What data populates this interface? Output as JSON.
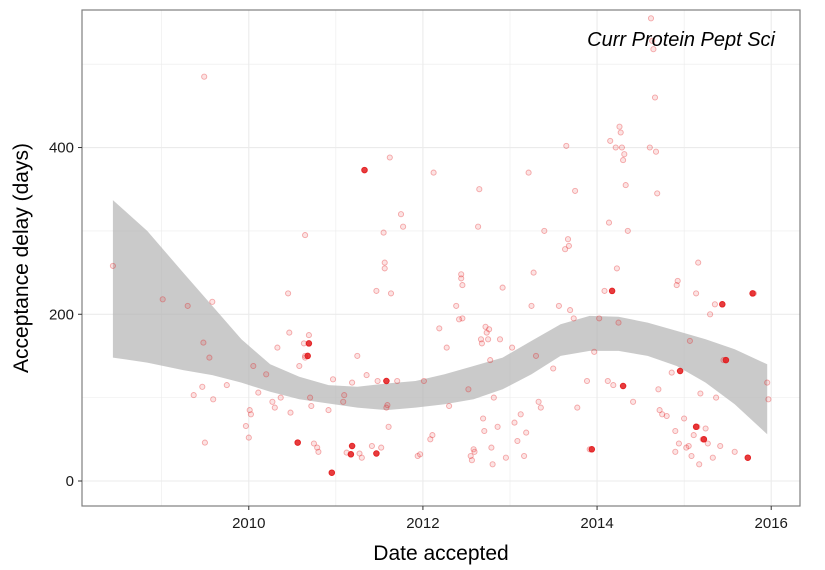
{
  "chart_data": {
    "type": "scatter",
    "title": "Curr Protein Pept Sci",
    "xlabel": "Date accepted",
    "ylabel": "Acceptance delay (days)",
    "xlim": [
      "2008-02-01",
      "2016-05-01"
    ],
    "ylim": [
      -30,
      565
    ],
    "x_ticks": [
      "2010",
      "2012",
      "2014",
      "2016"
    ],
    "y_ticks": [
      "0",
      "200",
      "400"
    ],
    "grid": true,
    "legend": "none",
    "colors": {
      "points": "#e31a1c",
      "band": "#b3b3b3",
      "grid": "#ebebeb",
      "border": "#7f7f7f"
    },
    "points": [
      [
        "2008-06-10",
        258
      ],
      [
        "2009-01-05",
        218
      ],
      [
        "2009-04-20",
        210
      ],
      [
        "2009-05-15",
        103
      ],
      [
        "2009-06-20",
        113
      ],
      [
        "2009-06-25",
        166
      ],
      [
        "2009-06-28",
        485
      ],
      [
        "2009-07-01",
        46
      ],
      [
        "2009-07-20",
        148
      ],
      [
        "2009-08-01",
        215
      ],
      [
        "2009-08-05",
        98
      ],
      [
        "2009-10-01",
        115
      ],
      [
        "2009-12-20",
        66
      ],
      [
        "2010-01-01",
        52
      ],
      [
        "2010-01-05",
        85
      ],
      [
        "2010-01-10",
        80
      ],
      [
        "2010-01-20",
        138
      ],
      [
        "2010-02-10",
        106
      ],
      [
        "2010-03-15",
        128
      ],
      [
        "2010-04-10",
        95
      ],
      [
        "2010-04-20",
        88
      ],
      [
        "2010-05-01",
        160
      ],
      [
        "2010-05-15",
        100
      ],
      [
        "2010-06-15",
        225
      ],
      [
        "2010-06-20",
        178
      ],
      [
        "2010-06-25",
        82
      ],
      [
        "2010-08-01",
        138
      ],
      [
        "2010-08-20",
        165
      ],
      [
        "2010-08-25",
        295
      ],
      [
        "2010-08-25",
        150
      ],
      [
        "2010-08-25",
        148
      ],
      [
        "2010-09-10",
        175
      ],
      [
        "2010-09-15",
        100
      ],
      [
        "2010-09-20",
        90
      ],
      [
        "2010-10-01",
        45
      ],
      [
        "2010-10-15",
        40
      ],
      [
        "2010-10-20",
        35
      ],
      [
        "2010-12-01",
        85
      ],
      [
        "2010-12-20",
        122
      ],
      [
        "2011-02-01",
        95
      ],
      [
        "2011-02-05",
        103
      ],
      [
        "2011-02-15",
        34
      ],
      [
        "2011-03-10",
        118
      ],
      [
        "2011-04-01",
        150
      ],
      [
        "2011-04-10",
        33
      ],
      [
        "2011-04-20",
        28
      ],
      [
        "2011-05-10",
        127
      ],
      [
        "2011-06-01",
        42
      ],
      [
        "2011-06-20",
        228
      ],
      [
        "2011-06-25",
        120
      ],
      [
        "2011-07-10",
        40
      ],
      [
        "2011-07-20",
        298
      ],
      [
        "2011-07-25",
        262
      ],
      [
        "2011-07-25",
        255
      ],
      [
        "2011-08-01",
        88
      ],
      [
        "2011-08-05",
        91
      ],
      [
        "2011-08-10",
        65
      ],
      [
        "2011-08-15",
        388
      ],
      [
        "2011-08-20",
        225
      ],
      [
        "2011-09-15",
        120
      ],
      [
        "2011-10-01",
        320
      ],
      [
        "2011-10-10",
        305
      ],
      [
        "2011-12-10",
        30
      ],
      [
        "2011-12-20",
        32
      ],
      [
        "2012-01-05",
        120
      ],
      [
        "2012-02-01",
        50
      ],
      [
        "2012-02-10",
        55
      ],
      [
        "2012-02-15",
        370
      ],
      [
        "2012-03-10",
        183
      ],
      [
        "2012-04-10",
        160
      ],
      [
        "2012-04-20",
        90
      ],
      [
        "2012-05-20",
        210
      ],
      [
        "2012-06-01",
        194
      ],
      [
        "2012-06-10",
        248
      ],
      [
        "2012-06-10",
        243
      ],
      [
        "2012-06-15",
        235
      ],
      [
        "2012-06-15",
        195
      ],
      [
        "2012-07-10",
        110
      ],
      [
        "2012-07-20",
        30
      ],
      [
        "2012-07-25",
        25
      ],
      [
        "2012-08-01",
        38
      ],
      [
        "2012-08-05",
        35
      ],
      [
        "2012-08-20",
        305
      ],
      [
        "2012-08-25",
        350
      ],
      [
        "2012-09-01",
        170
      ],
      [
        "2012-09-05",
        165
      ],
      [
        "2012-09-10",
        75
      ],
      [
        "2012-09-15",
        60
      ],
      [
        "2012-09-20",
        185
      ],
      [
        "2012-09-25",
        178
      ],
      [
        "2012-10-01",
        170
      ],
      [
        "2012-10-05",
        182
      ],
      [
        "2012-10-10",
        145
      ],
      [
        "2012-10-15",
        40
      ],
      [
        "2012-10-20",
        20
      ],
      [
        "2012-10-25",
        100
      ],
      [
        "2012-11-10",
        65
      ],
      [
        "2012-11-20",
        170
      ],
      [
        "2012-12-01",
        232
      ],
      [
        "2012-12-15",
        28
      ],
      [
        "2013-01-10",
        160
      ],
      [
        "2013-01-20",
        70
      ],
      [
        "2013-02-01",
        48
      ],
      [
        "2013-02-15",
        80
      ],
      [
        "2013-03-01",
        30
      ],
      [
        "2013-03-10",
        58
      ],
      [
        "2013-03-20",
        370
      ],
      [
        "2013-04-01",
        210
      ],
      [
        "2013-04-10",
        250
      ],
      [
        "2013-04-20",
        150
      ],
      [
        "2013-05-01",
        95
      ],
      [
        "2013-05-10",
        88
      ],
      [
        "2013-05-25",
        300
      ],
      [
        "2013-07-01",
        135
      ],
      [
        "2013-07-25",
        210
      ],
      [
        "2013-08-20",
        278
      ],
      [
        "2013-08-25",
        402
      ],
      [
        "2013-09-01",
        290
      ],
      [
        "2013-09-05",
        282
      ],
      [
        "2013-09-10",
        205
      ],
      [
        "2013-09-25",
        195
      ],
      [
        "2013-10-01",
        348
      ],
      [
        "2013-10-10",
        88
      ],
      [
        "2013-11-20",
        120
      ],
      [
        "2013-12-01",
        38
      ],
      [
        "2013-12-20",
        155
      ],
      [
        "2014-01-10",
        195
      ],
      [
        "2014-02-01",
        228
      ],
      [
        "2014-02-15",
        120
      ],
      [
        "2014-02-20",
        310
      ],
      [
        "2014-02-25",
        408
      ],
      [
        "2014-03-10",
        115
      ],
      [
        "2014-03-20",
        400
      ],
      [
        "2014-03-25",
        255
      ],
      [
        "2014-04-01",
        190
      ],
      [
        "2014-04-05",
        425
      ],
      [
        "2014-04-10",
        418
      ],
      [
        "2014-04-15",
        400
      ],
      [
        "2014-04-20",
        385
      ],
      [
        "2014-04-25",
        392
      ],
      [
        "2014-05-01",
        355
      ],
      [
        "2014-05-10",
        300
      ],
      [
        "2014-06-01",
        95
      ],
      [
        "2014-08-10",
        400
      ],
      [
        "2014-08-15",
        555
      ],
      [
        "2014-08-20",
        528
      ],
      [
        "2014-08-25",
        518
      ],
      [
        "2014-09-01",
        460
      ],
      [
        "2014-09-05",
        395
      ],
      [
        "2014-09-10",
        345
      ],
      [
        "2014-09-15",
        110
      ],
      [
        "2014-09-20",
        85
      ],
      [
        "2014-10-01",
        80
      ],
      [
        "2014-10-20",
        78
      ],
      [
        "2014-11-10",
        130
      ],
      [
        "2014-11-25",
        60
      ],
      [
        "2014-11-25",
        35
      ],
      [
        "2014-12-01",
        235
      ],
      [
        "2014-12-05",
        240
      ],
      [
        "2014-12-10",
        45
      ],
      [
        "2015-01-01",
        75
      ],
      [
        "2015-01-10",
        40
      ],
      [
        "2015-01-20",
        42
      ],
      [
        "2015-01-25",
        168
      ],
      [
        "2015-02-01",
        30
      ],
      [
        "2015-02-10",
        55
      ],
      [
        "2015-02-20",
        225
      ],
      [
        "2015-02-25",
        65
      ],
      [
        "2015-03-01",
        262
      ],
      [
        "2015-03-05",
        20
      ],
      [
        "2015-03-10",
        105
      ],
      [
        "2015-03-20",
        50
      ],
      [
        "2015-04-01",
        63
      ],
      [
        "2015-04-10",
        45
      ],
      [
        "2015-04-20",
        200
      ],
      [
        "2015-05-01",
        28
      ],
      [
        "2015-05-10",
        212
      ],
      [
        "2015-05-15",
        100
      ],
      [
        "2015-06-01",
        42
      ],
      [
        "2015-06-15",
        145
      ],
      [
        "2015-08-01",
        35
      ],
      [
        "2015-10-20",
        225
      ],
      [
        "2015-12-15",
        118
      ],
      [
        "2015-12-20",
        98
      ]
    ],
    "highlighted_points": [
      [
        "2010-07-25",
        46
      ],
      [
        "2010-09-05",
        150
      ],
      [
        "2010-09-10",
        165
      ],
      [
        "2010-12-15",
        10
      ],
      [
        "2011-03-05",
        32
      ],
      [
        "2011-03-10",
        42
      ],
      [
        "2011-05-01",
        373
      ],
      [
        "2011-06-20",
        33
      ],
      [
        "2011-08-01",
        120
      ],
      [
        "2013-12-10",
        38
      ],
      [
        "2014-03-05",
        228
      ],
      [
        "2014-04-20",
        114
      ],
      [
        "2014-12-15",
        132
      ],
      [
        "2015-02-20",
        65
      ],
      [
        "2015-03-25",
        50
      ],
      [
        "2015-06-10",
        212
      ],
      [
        "2015-06-25",
        145
      ],
      [
        "2015-10-15",
        225
      ],
      [
        "2015-09-25",
        28
      ]
    ],
    "smooth": [
      [
        "2008-06-10",
        148,
        337
      ],
      [
        "2008-11-01",
        142,
        300
      ],
      [
        "2009-04-01",
        133,
        250
      ],
      [
        "2009-08-01",
        127,
        210
      ],
      [
        "2009-12-01",
        118,
        170
      ],
      [
        "2010-04-01",
        107,
        140
      ],
      [
        "2010-08-01",
        98,
        125
      ],
      [
        "2010-12-01",
        93,
        115
      ],
      [
        "2011-04-01",
        88,
        113
      ],
      [
        "2011-08-01",
        85,
        117
      ],
      [
        "2011-12-01",
        88,
        120
      ],
      [
        "2012-04-01",
        92,
        128
      ],
      [
        "2012-08-01",
        98,
        138
      ],
      [
        "2012-12-01",
        110,
        148
      ],
      [
        "2013-04-01",
        128,
        168
      ],
      [
        "2013-08-01",
        150,
        188
      ],
      [
        "2013-12-01",
        156,
        198
      ],
      [
        "2014-04-01",
        156,
        197
      ],
      [
        "2014-08-01",
        150,
        190
      ],
      [
        "2014-12-01",
        138,
        180
      ],
      [
        "2015-04-01",
        118,
        170
      ],
      [
        "2015-08-01",
        92,
        158
      ],
      [
        "2015-12-15",
        56,
        140
      ]
    ]
  }
}
